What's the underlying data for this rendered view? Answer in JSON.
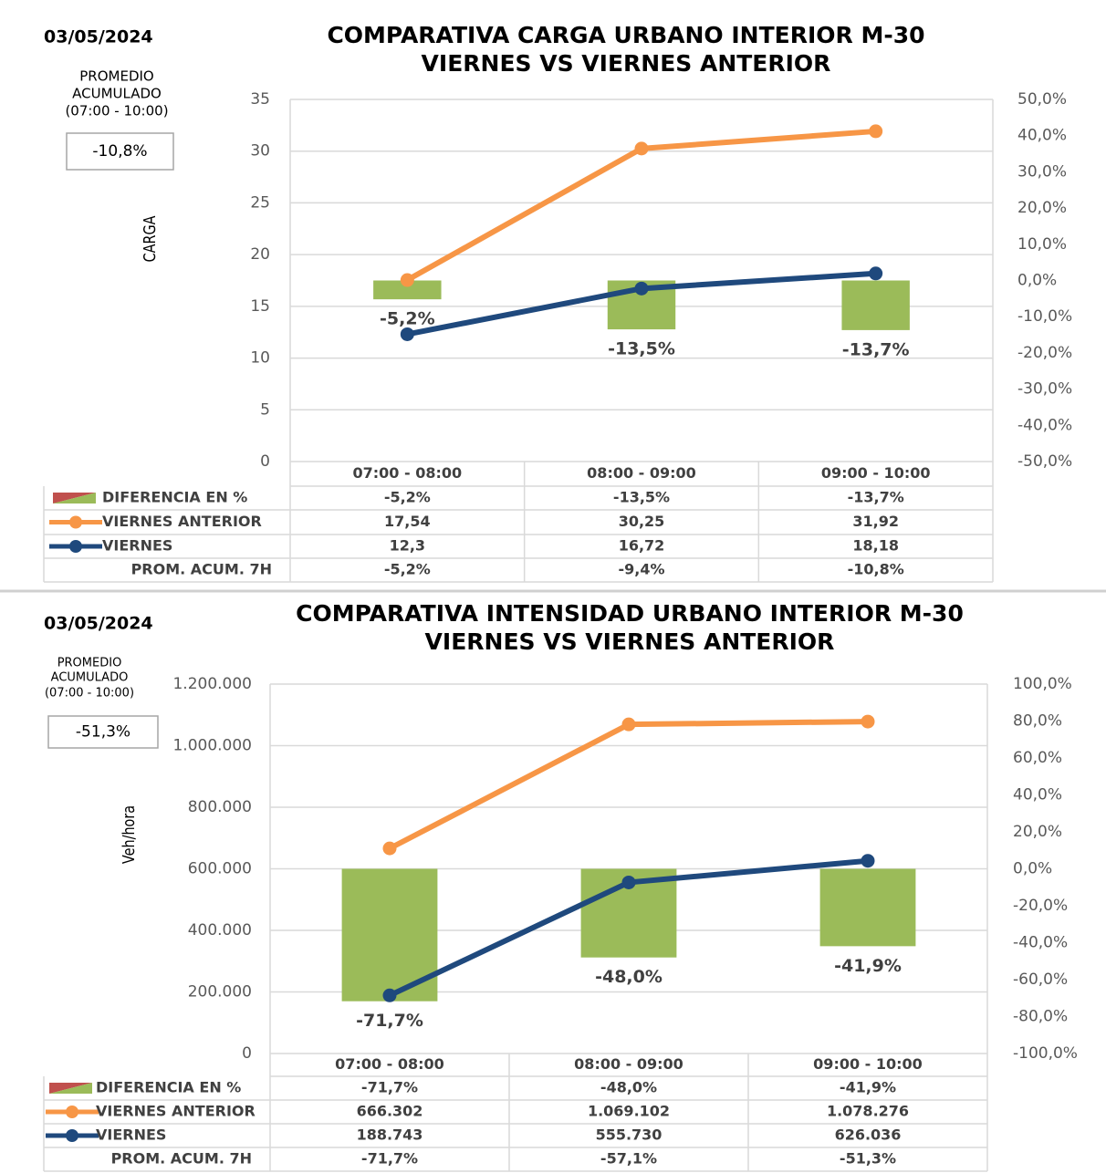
{
  "chart_data": [
    {
      "type": "combo",
      "date": "03/05/2024",
      "title": "COMPARATIVA CARGA URBANO INTERIOR M-30",
      "subtitle": "VIERNES VS VIERNES ANTERIOR",
      "note": [
        "PROMEDIO",
        "ACUMULADO",
        "(07:00 - 10:00)"
      ],
      "summary": "-10,8%",
      "ylabel": "CARGA",
      "categories": [
        "07:00 - 08:00",
        "08:00 - 09:00",
        "09:00 - 10:00"
      ],
      "series": [
        {
          "name": "DIFERENCIA EN %",
          "type": "bar",
          "axis": "y2",
          "color": "#9bbb59",
          "values": [
            -5.2,
            -13.5,
            -13.7
          ],
          "value_labels": [
            "-5,2%",
            "-13,5%",
            "-13,7%"
          ]
        },
        {
          "name": "VIERNES ANTERIOR",
          "type": "line",
          "color": "#f79646",
          "values": [
            17.54,
            30.25,
            31.92
          ],
          "value_labels": [
            "17,54",
            "30,25",
            "31,92"
          ]
        },
        {
          "name": "VIERNES",
          "type": "line",
          "color": "#1f497d",
          "values": [
            12.3,
            16.72,
            18.18
          ],
          "value_labels": [
            "12,3",
            "16,72",
            "18,18"
          ]
        }
      ],
      "table_row": {
        "name": "PROM. ACUM. 7H",
        "values": [
          -5.2,
          -9.4,
          -10.8
        ],
        "value_labels": [
          "-5,2%",
          "-9,4%",
          "-10,8%"
        ]
      },
      "ylim": [
        0,
        35
      ],
      "yticks": [
        0,
        5,
        10,
        15,
        20,
        25,
        30,
        35
      ],
      "y2lim": [
        -50,
        50
      ],
      "y2ticks": [
        {
          "value": -50,
          "label": "-50,0%"
        },
        {
          "value": -40,
          "label": "-40,0%"
        },
        {
          "value": -30,
          "label": "-30,0%"
        },
        {
          "value": -20,
          "label": "-20,0%"
        },
        {
          "value": -10,
          "label": "-10,0%"
        },
        {
          "value": 0,
          "label": "0,0%"
        },
        {
          "value": 10,
          "label": "10,0%"
        },
        {
          "value": 20,
          "label": "20,0%"
        },
        {
          "value": 30,
          "label": "30,0%"
        },
        {
          "value": 40,
          "label": "40,0%"
        },
        {
          "value": 50,
          "label": "50,0%"
        }
      ],
      "grid": true
    },
    {
      "type": "combo",
      "date": "03/05/2024",
      "title": "COMPARATIVA INTENSIDAD URBANO INTERIOR M-30",
      "subtitle": "VIERNES VS VIERNES ANTERIOR",
      "note": [
        "PROMEDIO",
        "ACUMULADO",
        "(07:00 - 10:00)"
      ],
      "summary": "-51,3%",
      "ylabel": "Veh/hora",
      "categories": [
        "07:00 - 08:00",
        "08:00 - 09:00",
        "09:00 - 10:00"
      ],
      "series": [
        {
          "name": "DIFERENCIA EN %",
          "type": "bar",
          "axis": "y2",
          "color": "#9bbb59",
          "values": [
            -71.7,
            -48.0,
            -41.9
          ],
          "value_labels": [
            "-71,7%",
            "-48,0%",
            "-41,9%"
          ]
        },
        {
          "name": "VIERNES ANTERIOR",
          "type": "line",
          "color": "#f79646",
          "values": [
            666302,
            1069102,
            1078276
          ],
          "value_labels": [
            "666.302",
            "1.069.102",
            "1.078.276"
          ]
        },
        {
          "name": "VIERNES",
          "type": "line",
          "color": "#1f497d",
          "values": [
            188743,
            555730,
            626036
          ],
          "value_labels": [
            "188.743",
            "555.730",
            "626.036"
          ]
        }
      ],
      "table_row": {
        "name": "PROM. ACUM. 7H",
        "values": [
          -71.7,
          -57.1,
          -51.3
        ],
        "value_labels": [
          "-71,7%",
          "-57,1%",
          "-51,3%"
        ]
      },
      "ylim": [
        0,
        1200000
      ],
      "yticks": [
        0,
        {
          "value": 200000,
          "label": "200.000"
        },
        {
          "value": 400000,
          "label": "400.000"
        },
        {
          "value": 600000,
          "label": "600.000"
        },
        {
          "value": 800000,
          "label": "800.000"
        },
        {
          "value": 1000000,
          "label": "1.000.000"
        },
        {
          "value": 1200000,
          "label": "1.200.000"
        }
      ],
      "y2lim": [
        -100,
        100
      ],
      "y2ticks": [
        {
          "value": -100,
          "label": "-100,0%"
        },
        {
          "value": -80,
          "label": "-80,0%"
        },
        {
          "value": -60,
          "label": "-60,0%"
        },
        {
          "value": -40,
          "label": "-40,0%"
        },
        {
          "value": -20,
          "label": "-20,0%"
        },
        {
          "value": 0,
          "label": "0,0%"
        },
        {
          "value": 20,
          "label": "20,0%"
        },
        {
          "value": 40,
          "label": "40,0%"
        },
        {
          "value": 60,
          "label": "60,0%"
        },
        {
          "value": 80,
          "label": "80,0%"
        },
        {
          "value": 100,
          "label": "100,0%"
        }
      ],
      "grid": true
    }
  ]
}
